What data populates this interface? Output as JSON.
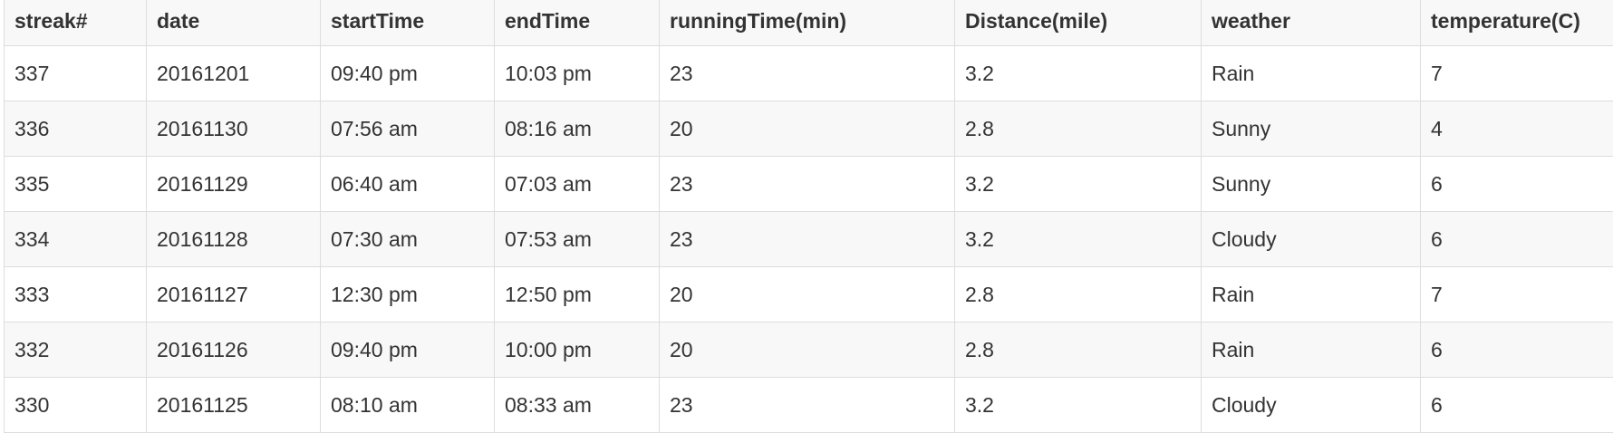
{
  "table": {
    "headers": [
      "streak#",
      "date",
      "startTime",
      "endTime",
      "runningTime(min)",
      "Distance(mile)",
      "weather",
      "temperature(C)"
    ],
    "rows": [
      [
        "337",
        "20161201",
        "09:40 pm",
        "10:03 pm",
        "23",
        "3.2",
        "Rain",
        "7"
      ],
      [
        "336",
        "20161130",
        "07:56 am",
        "08:16 am",
        "20",
        "2.8",
        "Sunny",
        "4"
      ],
      [
        "335",
        "20161129",
        "06:40 am",
        "07:03 am",
        "23",
        "3.2",
        "Sunny",
        "6"
      ],
      [
        "334",
        "20161128",
        "07:30 am",
        "07:53 am",
        "23",
        "3.2",
        "Cloudy",
        "6"
      ],
      [
        "333",
        "20161127",
        "12:30 pm",
        "12:50 pm",
        "20",
        "2.8",
        "Rain",
        "7"
      ],
      [
        "332",
        "20161126",
        "09:40 pm",
        "10:00 pm",
        "20",
        "2.8",
        "Rain",
        "6"
      ],
      [
        "330",
        "20161125",
        "08:10 am",
        "08:33 am",
        "23",
        "3.2",
        "Cloudy",
        "6"
      ]
    ]
  }
}
